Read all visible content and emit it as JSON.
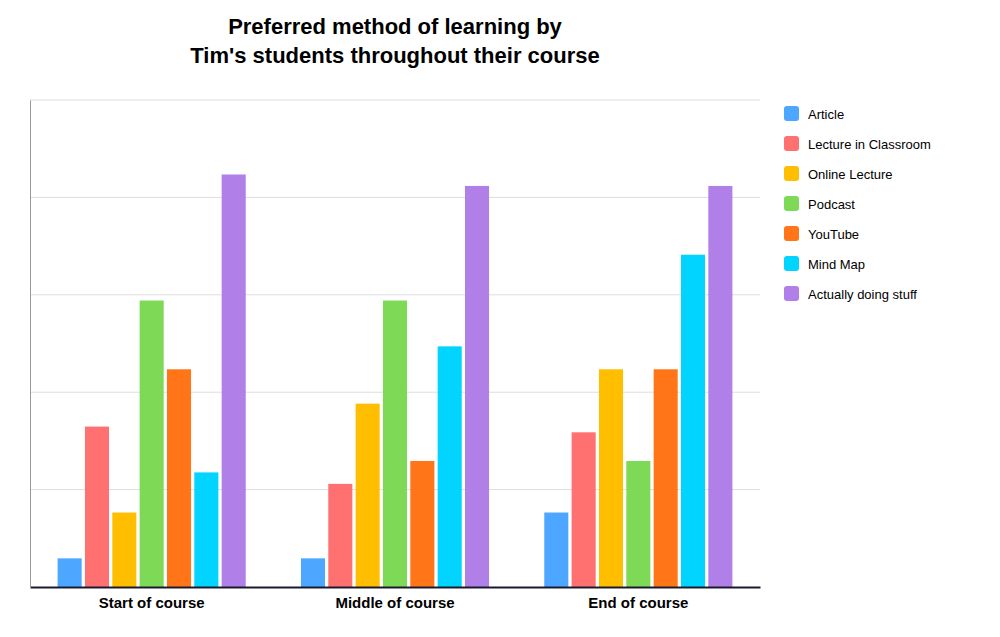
{
  "chart_data": {
    "type": "bar",
    "title": "Preferred method of learning by\nTim's students throughout their course",
    "categories": [
      "Start of course",
      "Middle of course",
      "End of course"
    ],
    "series": [
      {
        "name": "Article",
        "color": "#4da6ff",
        "values": [
          5,
          5,
          13
        ]
      },
      {
        "name": "Lecture in Classroom",
        "color": "#ff7070",
        "values": [
          28,
          18,
          27
        ]
      },
      {
        "name": "Online Lecture",
        "color": "#ffbf00",
        "values": [
          13,
          32,
          38
        ]
      },
      {
        "name": "Podcast",
        "color": "#7ed957",
        "values": [
          50,
          50,
          22
        ]
      },
      {
        "name": "YouTube",
        "color": "#ff7518",
        "values": [
          38,
          22,
          38
        ]
      },
      {
        "name": "Mind Map",
        "color": "#00d4ff",
        "values": [
          20,
          42,
          58
        ]
      },
      {
        "name": "Actually doing stuff",
        "color": "#b07fe8",
        "values": [
          72,
          70,
          70
        ]
      }
    ],
    "ylim": [
      0,
      85
    ],
    "yticks": [
      17,
      34,
      51,
      68,
      85
    ],
    "grid": true,
    "legend": "right",
    "tick_labels": "x"
  }
}
